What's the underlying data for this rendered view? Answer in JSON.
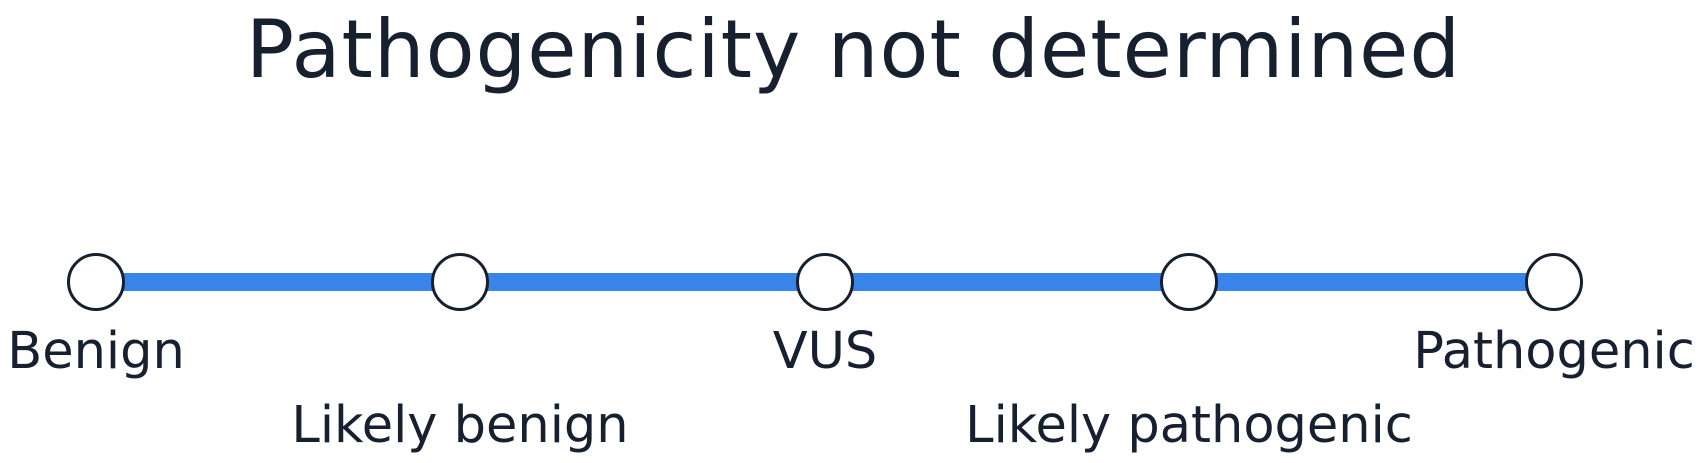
{
  "title": "Pathogenicity not determined",
  "scale": {
    "points": [
      {
        "label": "Benign",
        "row": "upper"
      },
      {
        "label": "Likely benign",
        "row": "lower"
      },
      {
        "label": "VUS",
        "row": "upper"
      },
      {
        "label": "Likely pathogenic",
        "row": "lower"
      },
      {
        "label": "Pathogenic",
        "row": "upper"
      }
    ],
    "line_color": "#3884ea",
    "marker_fill": "#ffffff",
    "marker_stroke": "#16202e",
    "text_color": "#16202e"
  }
}
